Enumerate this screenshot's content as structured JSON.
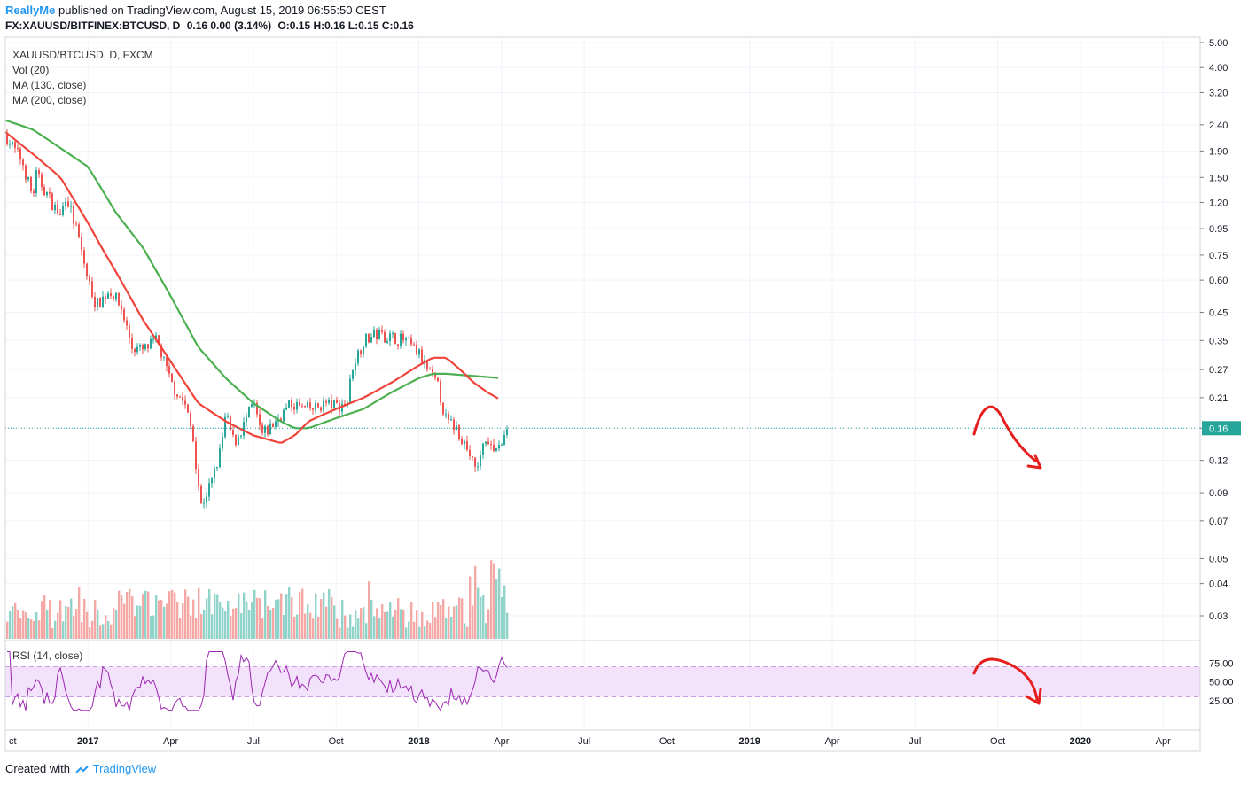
{
  "header": {
    "user": "ReallyMe",
    "published_text": "published on TradingView.com, August 15, 2019 06:55:50 CEST",
    "symbol": "FX:XAUUSD/BITFINEX:BTCUSD, D",
    "change": "0.16 0.00 (3.14%)",
    "ohlc": "O:0.15 H:0.16 L:0.15 C:0.16"
  },
  "legend": {
    "symbol": "XAUUSD/BTCUSD, D, FXCM",
    "vol": "Vol (20)",
    "ma130": "MA (130, close)",
    "ma200": "MA (200, close)"
  },
  "rsi_label": "RSI (14, close)",
  "footer": {
    "created": "Created with",
    "brand": "TradingView"
  },
  "price_label": "0.16",
  "colors": {
    "ma130": "#f0433a",
    "ma200": "#4caf50",
    "up": "#26a69a",
    "down": "#ef5350",
    "vol_up": "#8fd3c9",
    "vol_down": "#f4a7a4",
    "rsi": "#9c27b0",
    "rsi_band": "#f3e2fb",
    "annotation": "#e61e1e",
    "grid": "#f0f3fa",
    "price_line": "#26a69a"
  },
  "chart_data": {
    "type": "line",
    "scale": "log",
    "y_ticks": [
      "5.00",
      "4.00",
      "3.20",
      "2.40",
      "1.90",
      "1.50",
      "1.20",
      "0.95",
      "0.75",
      "0.60",
      "0.45",
      "0.35",
      "0.27",
      "0.21",
      "0.16",
      "0.12",
      "0.09",
      "0.07",
      "0.05",
      "0.04",
      "0.03"
    ],
    "x_ticks": [
      "ct",
      "2017",
      "Apr",
      "Jul",
      "Oct",
      "2018",
      "Apr",
      "Jul",
      "Oct",
      "2019",
      "Apr",
      "Jul",
      "Oct",
      "2020",
      "Apr"
    ],
    "x_bold": [
      "2017",
      "2018",
      "2019",
      "2020"
    ],
    "rsi_ticks": [
      "75.00",
      "50.00",
      "25.00"
    ],
    "rsi_band": [
      30,
      70
    ],
    "last_price": 0.16,
    "price_path": [
      [
        0,
        2.2
      ],
      [
        0.3,
        1.95
      ],
      [
        0.6,
        1.75
      ],
      [
        1,
        1.25
      ],
      [
        1.1,
        1.55
      ],
      [
        1.5,
        1.3
      ],
      [
        2,
        1.05
      ],
      [
        2.2,
        1.3
      ],
      [
        2.6,
        0.92
      ],
      [
        3,
        0.6
      ],
      [
        3.3,
        0.48
      ],
      [
        3.8,
        0.55
      ],
      [
        4.2,
        0.47
      ],
      [
        4.6,
        0.33
      ],
      [
        5,
        0.32
      ],
      [
        5.5,
        0.35
      ],
      [
        6,
        0.24
      ],
      [
        6.5,
        0.2
      ],
      [
        6.8,
        0.15
      ],
      [
        7.1,
        0.08
      ],
      [
        7.5,
        0.1
      ],
      [
        7.8,
        0.13
      ],
      [
        8,
        0.18
      ],
      [
        8.3,
        0.14
      ],
      [
        8.6,
        0.16
      ],
      [
        9,
        0.2
      ],
      [
        9.3,
        0.15
      ],
      [
        9.6,
        0.16
      ],
      [
        10,
        0.18
      ],
      [
        10.4,
        0.2
      ],
      [
        10.8,
        0.19
      ],
      [
        11.2,
        0.19
      ],
      [
        11.6,
        0.2
      ],
      [
        12,
        0.195
      ],
      [
        12.4,
        0.2
      ],
      [
        12.6,
        0.28
      ],
      [
        13,
        0.35
      ],
      [
        13.5,
        0.37
      ],
      [
        14,
        0.36
      ],
      [
        14.5,
        0.35
      ],
      [
        15,
        0.31
      ],
      [
        15.4,
        0.26
      ],
      [
        15.7,
        0.23
      ],
      [
        16,
        0.17
      ],
      [
        16.4,
        0.16
      ],
      [
        16.8,
        0.13
      ],
      [
        17.1,
        0.11
      ],
      [
        17.4,
        0.14
      ],
      [
        17.7,
        0.13
      ],
      [
        18,
        0.14
      ],
      [
        18.2,
        0.16
      ]
    ],
    "ma130_path": [
      [
        0,
        2.25
      ],
      [
        0.6,
        2.0
      ],
      [
        1,
        1.85
      ],
      [
        2,
        1.5
      ],
      [
        3,
        1.0
      ],
      [
        3.5,
        0.8
      ],
      [
        4,
        0.65
      ],
      [
        5,
        0.42
      ],
      [
        6,
        0.29
      ],
      [
        7,
        0.2
      ],
      [
        8,
        0.17
      ],
      [
        9,
        0.15
      ],
      [
        10,
        0.14
      ],
      [
        10.5,
        0.15
      ],
      [
        11,
        0.17
      ],
      [
        11.5,
        0.18
      ],
      [
        12,
        0.19
      ],
      [
        13,
        0.21
      ],
      [
        14,
        0.24
      ],
      [
        15,
        0.28
      ],
      [
        15.5,
        0.3
      ],
      [
        16,
        0.3
      ],
      [
        16.5,
        0.27
      ],
      [
        17,
        0.24
      ],
      [
        17.5,
        0.22
      ],
      [
        18,
        0.205
      ]
    ],
    "ma200_path": [
      [
        0,
        2.5
      ],
      [
        1,
        2.3
      ],
      [
        2,
        1.95
      ],
      [
        3,
        1.65
      ],
      [
        3.5,
        1.35
      ],
      [
        4,
        1.1
      ],
      [
        5,
        0.8
      ],
      [
        6,
        0.52
      ],
      [
        7,
        0.33
      ],
      [
        8,
        0.25
      ],
      [
        9,
        0.2
      ],
      [
        10,
        0.17
      ],
      [
        10.5,
        0.16
      ],
      [
        11,
        0.16
      ],
      [
        12,
        0.175
      ],
      [
        13,
        0.19
      ],
      [
        14,
        0.22
      ],
      [
        15,
        0.25
      ],
      [
        15.5,
        0.26
      ],
      [
        16,
        0.26
      ],
      [
        17,
        0.255
      ],
      [
        18,
        0.25
      ]
    ]
  }
}
